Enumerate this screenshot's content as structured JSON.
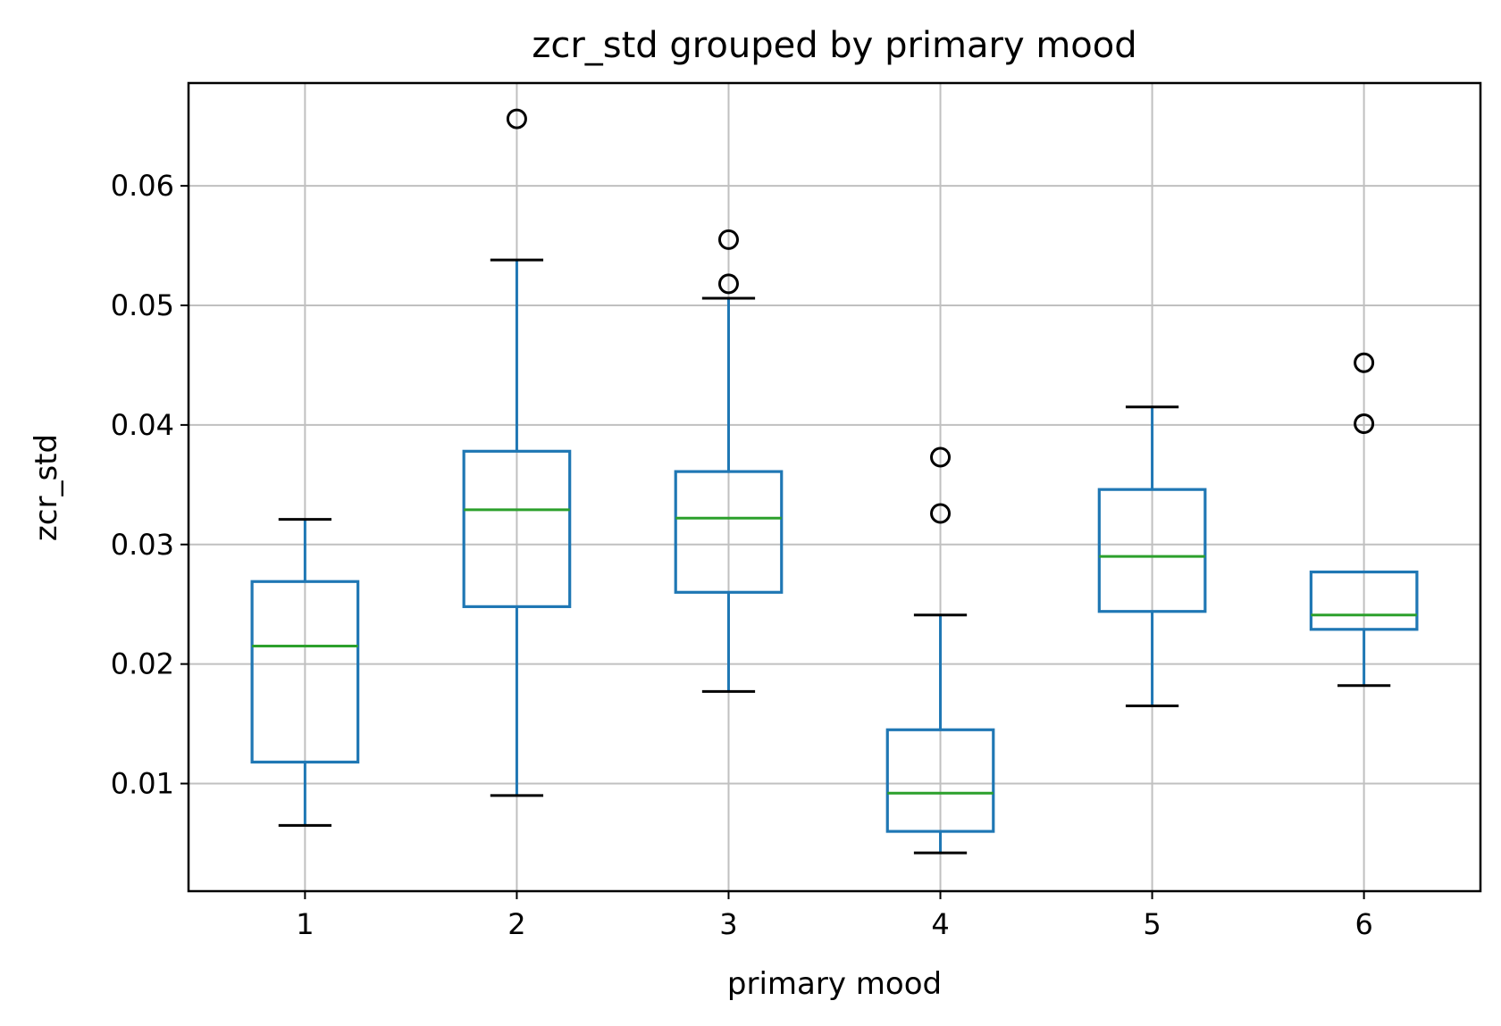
{
  "chart_data": {
    "type": "box",
    "title": "zcr_std grouped by primary mood",
    "xlabel": "primary mood",
    "ylabel": "zcr_std",
    "categories": [
      "1",
      "2",
      "3",
      "4",
      "5",
      "6"
    ],
    "ylim": [
      0.001,
      0.0686
    ],
    "yticks": [
      0.01,
      0.02,
      0.03,
      0.04,
      0.05,
      0.06
    ],
    "ytick_labels": [
      "0.01",
      "0.02",
      "0.03",
      "0.04",
      "0.05",
      "0.06"
    ],
    "grid": true,
    "legend": "none",
    "boxes": [
      {
        "category": "1",
        "whisker_low": 0.0065,
        "q1": 0.0118,
        "median": 0.0215,
        "q3": 0.0269,
        "whisker_high": 0.0321,
        "outliers": []
      },
      {
        "category": "2",
        "whisker_low": 0.009,
        "q1": 0.0248,
        "median": 0.0329,
        "q3": 0.0378,
        "whisker_high": 0.0538,
        "outliers": [
          0.0656
        ]
      },
      {
        "category": "3",
        "whisker_low": 0.0177,
        "q1": 0.026,
        "median": 0.0322,
        "q3": 0.0361,
        "whisker_high": 0.0506,
        "outliers": [
          0.0518,
          0.0555
        ]
      },
      {
        "category": "4",
        "whisker_low": 0.0042,
        "q1": 0.006,
        "median": 0.0092,
        "q3": 0.0145,
        "whisker_high": 0.0241,
        "outliers": [
          0.0326,
          0.0373
        ]
      },
      {
        "category": "5",
        "whisker_low": 0.0165,
        "q1": 0.0244,
        "median": 0.029,
        "q3": 0.0346,
        "whisker_high": 0.0415,
        "outliers": []
      },
      {
        "category": "6",
        "whisker_low": 0.0182,
        "q1": 0.0229,
        "median": 0.0241,
        "q3": 0.0277,
        "whisker_high": 0.0277,
        "outliers": [
          0.0401,
          0.0452
        ]
      }
    ],
    "colors": {
      "box": "#1f77b4",
      "median": "#2ca02c",
      "whisker_cap": "#000000",
      "outlier": "#000000",
      "grid": "#c0c0c0",
      "frame": "#000000"
    }
  }
}
